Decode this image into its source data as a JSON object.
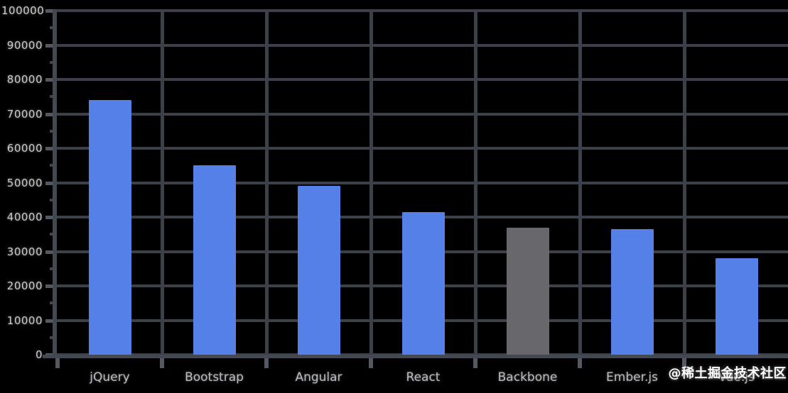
{
  "watermark": "@稀土掘金技术社区",
  "chart_data": {
    "type": "bar",
    "title": "",
    "xlabel": "",
    "ylabel": "",
    "categories": [
      "jQuery",
      "Bootstrap",
      "Angular",
      "React",
      "Backbone",
      "Ember.js",
      "Vue.js"
    ],
    "values": [
      74000,
      55000,
      49000,
      41500,
      37000,
      36500,
      28000
    ],
    "ylim": [
      0,
      100000
    ],
    "ytick_step": 10000,
    "ytick_labels": [
      "0",
      "10000",
      "20000",
      "30000",
      "40000",
      "50000",
      "60000",
      "70000",
      "80000",
      "90000",
      "100000"
    ],
    "grid": true,
    "legend": false,
    "highlight_index": 4,
    "colors": {
      "bar_default": "#5480e8",
      "bar_highlight": "#67676c",
      "gridline": "#3b4049",
      "axis": "#434851",
      "tick": "#545860",
      "label_text": "#c8cacd",
      "background": "#000000",
      "watermark_text": "#fdfdfd"
    }
  }
}
